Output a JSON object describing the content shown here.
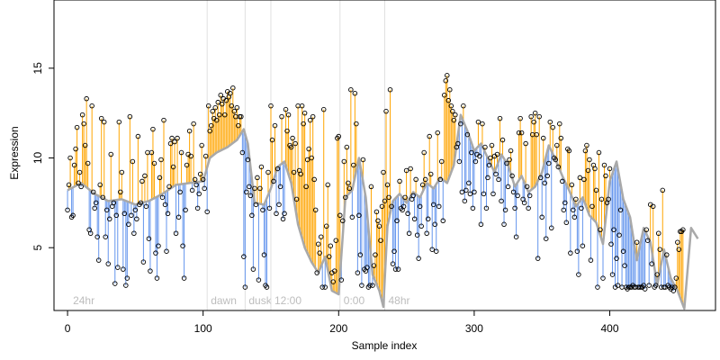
{
  "chart_data": {
    "type": "scatter",
    "xlabel": "Sample index",
    "ylabel": "Expression",
    "xlim": [
      -10,
      478
    ],
    "ylim": [
      1.5,
      18.8
    ],
    "x_ticks": [
      0,
      100,
      200,
      300,
      400
    ],
    "y_ticks": [
      5,
      10,
      15
    ],
    "grid": false,
    "colors": {
      "above": "#ffa500",
      "below": "#6495ed",
      "smooth": "#a9a9a9",
      "points": "#000000",
      "phase_lines": "#e0e0e0",
      "phase_labels": "#bdbdbd"
    },
    "phase_markers": [
      {
        "x": 103,
        "label": "dawn"
      },
      {
        "x": 131,
        "label": "dusk"
      },
      {
        "x": 150,
        "label": "12:00"
      },
      {
        "x": 201,
        "label": "0:00"
      },
      {
        "x": 234,
        "label": "48hr"
      }
    ],
    "corner_label": {
      "x": 2,
      "label": "24hr"
    },
    "smooth_series": {
      "name": "",
      "x": [
        0,
        10,
        20,
        30,
        40,
        50,
        60,
        70,
        80,
        90,
        100,
        105,
        110,
        118,
        125,
        130,
        133,
        138,
        145,
        150,
        155,
        160,
        165,
        170,
        175,
        180,
        185,
        190,
        195,
        200,
        205,
        210,
        215,
        220,
        225,
        230,
        233,
        236,
        240,
        245,
        250,
        255,
        260,
        265,
        270,
        275,
        280,
        285,
        290,
        295,
        300,
        305,
        310,
        315,
        320,
        325,
        330,
        335,
        340,
        345,
        350,
        355,
        360,
        365,
        370,
        375,
        380,
        385,
        390,
        395,
        400,
        405,
        410,
        415,
        420,
        425,
        430,
        435,
        440,
        445,
        450,
        455,
        460,
        465
      ],
      "y": [
        8.2,
        8.6,
        8.0,
        7.6,
        7.7,
        7.4,
        7.6,
        8.0,
        8.5,
        8.6,
        8.7,
        10.0,
        10.3,
        10.6,
        11.0,
        11.6,
        10.8,
        7.5,
        7.4,
        8.3,
        9.5,
        9.8,
        8.6,
        6.3,
        5.0,
        4.2,
        3.6,
        4.5,
        2.6,
        2.4,
        7.8,
        8.2,
        10.0,
        7.8,
        3.5,
        2.6,
        1.7,
        6.2,
        7.6,
        8.0,
        7.5,
        8.1,
        7.8,
        8.6,
        8.3,
        8.9,
        8.6,
        9.6,
        12.4,
        11.5,
        10.4,
        10.8,
        10.0,
        9.2,
        10.2,
        9.6,
        8.4,
        9.0,
        8.1,
        8.4,
        9.2,
        10.7,
        9.9,
        9.0,
        8.2,
        7.3,
        7.8,
        6.8,
        6.4,
        5.2,
        8.7,
        9.8,
        7.7,
        6.7,
        4.3,
        6.1,
        5.3,
        2.9,
        4.9,
        3.3,
        2.6,
        1.6,
        6.1,
        5.5
      ]
    },
    "points": {
      "name": "",
      "values": [
        7.1,
        8.5,
        10,
        6.7,
        6.8,
        9.6,
        10.5,
        11.7,
        8.6,
        9.2,
        8.4,
        12.4,
        11.9,
        10.7,
        13.3,
        9.7,
        6,
        5.8,
        12.9,
        8.1,
        7.2,
        7.5,
        5.6,
        4.3,
        8.5,
        12.2,
        7.8,
        12,
        5.6,
        7.1,
        4.1,
        6.6,
        10.2,
        7.3,
        7.5,
        3,
        6.8,
        3.9,
        12,
        8.1,
        9.2,
        3.8,
        6.9,
        2.9,
        3.3,
        6.3,
        12.3,
        6.8,
        9.8,
        5.8,
        7.1,
        6.6,
        11.2,
        7.4,
        7.5,
        8.7,
        4.2,
        9,
        7.3,
        10.3,
        5.5,
        3.7,
        10.3,
        11.6,
        9.7,
        4.7,
        3.3,
        5.1,
        8.9,
        9.9,
        7.8,
        12.1,
        7.4,
        4.8,
        6.9,
        8.4,
        10.8,
        11.1,
        9.5,
        10.9,
        5.8,
        11.1,
        6.7,
        8.1,
        10.3,
        5.1,
        3.3,
        7.1,
        9.6,
        10.2,
        11.5,
        10.1,
        8.2,
        11.9,
        8.8,
        8.5,
        7.2,
        8,
        9.1,
        10.7,
        8.8,
        8.3,
        10.1,
        7,
        12.9,
        11.5,
        11.8,
        12.6,
        12.2,
        12.8,
        12.1,
        13.1,
        12.4,
        13.5,
        13,
        13.3,
        12.4,
        13.2,
        13.7,
        13.4,
        13.6,
        12.9,
        13.9,
        12.6,
        12.3,
        12.8,
        11.8,
        12.3,
        12.3,
        10.3,
        4.5,
        2.8,
        8.1,
        9.9,
        8.4,
        7.9,
        6.8,
        3.8,
        8.3,
        7.4,
        8.9,
        3.2,
        8.3,
        9.5,
        7.1,
        4.6,
        2.9,
        2.8,
        9.2,
        7.2,
        12.9,
        11,
        8.7,
        11.8,
        6.9,
        9.4,
        7.4,
        8.4,
        12.3,
        6.6,
        6.9,
        12.7,
        11.5,
        12.4,
        10.7,
        10.6,
        11.1,
        9.2,
        10.8,
        7.7,
        12.9,
        9.3,
        9.1,
        12.9,
        11.9,
        12.5,
        8.4,
        9.9,
        10.5,
        12.1,
        10,
        12.3,
        8.8,
        7.1,
        3.6,
        5.2,
        4.7,
        5.6,
        2.8,
        12.7,
        2.8,
        6.2,
        8.5,
        4.5,
        5.1,
        3.6,
        3.1,
        3.7,
        5.4,
        11.1,
        11.2,
        6.8,
        3.2,
        6.5,
        9.8,
        7.8,
        10.6,
        8.6,
        8.3,
        13.8,
        6.7,
        9.6,
        13.6,
        11.9,
        3.6,
        6.8,
        4.6,
        2.9,
        9.9,
        3.8,
        3.7,
        3.9,
        2.8,
        2.9,
        8.4,
        2.9,
        4,
        4.6,
        7,
        6.5,
        6.2,
        5.4,
        7.3,
        9.2,
        7.6,
        12.6,
        8.5,
        7.8,
        13.8,
        7.3,
        4.1,
        4.8,
        3.8,
        6.5,
        3.8,
        8.7,
        7.2,
        7.1,
        7.3,
        7.8,
        9.3,
        6.9,
        5.8,
        9.4,
        7.7,
        7.9,
        6.6,
        8.8,
        5.7,
        4.4,
        7.3,
        6.2,
        8.5,
        10.3,
        8.8,
        5.8,
        6.6,
        11.2,
        9.1,
        4.9,
        7.4,
        6.3,
        4.8,
        11.4,
        7.3,
        8.8,
        9.8,
        6.5,
        13.5,
        14.3,
        14.6,
        13.2,
        13.8,
        12.9,
        12.6,
        12.1,
        12.4,
        10.6,
        10.8,
        9.8,
        11.9,
        8.1,
        12.9,
        7.6,
        8.2,
        11.3,
        8.6,
        8,
        10.3,
        7.2,
        8.1,
        9.8,
        10.2,
        12,
        10.1,
        6.3,
        11.9,
        8,
        10.6,
        7.2,
        8.9,
        9.6,
        10,
        10.7,
        8,
        10.1,
        9.1,
        10.2,
        8.8,
        12.2,
        7.6,
        11,
        6.3,
        7.1,
        9.7,
        8.4,
        9.9,
        10.4,
        9,
        8.1,
        7.2,
        5.6,
        7.9,
        11.4,
        12.2,
        11.4,
        7.7,
        7.5,
        10.8,
        8.4,
        7.2,
        7.9,
        12.3,
        11.3,
        12,
        12.5,
        11.3,
        4.4,
        12.3,
        8.9,
        6.7,
        11.1,
        8.6,
        5.5,
        9,
        9.7,
        12,
        6.1,
        11.7,
        10,
        9.9,
        10.7,
        9.5,
        11.9,
        11.1,
        8.7,
        7.1,
        7.5,
        6.4,
        10.5,
        10.4,
        4.7,
        8.5,
        7.1,
        6.7,
        7.7,
        4.8,
        3.5,
        8.9,
        7.2,
        5.1,
        8.8,
        10.4,
        10.7,
        9.3,
        9.9,
        4.3,
        7.3,
        9.6,
        9.4,
        8.2,
        2.8,
        10.3,
        6,
        7.7,
        3.3,
        9.6,
        9,
        7.5,
        7.7,
        9.4,
        5.2,
        3.5,
        6,
        2.8,
        4.4,
        2.9,
        5.7,
        7.1,
        2.8,
        4.8,
        4,
        2.8,
        2.7,
        2.8,
        2.8,
        2.8,
        2.9,
        2.8,
        2.8,
        5.3,
        2.8,
        2.8,
        2.8,
        2.8,
        2.9,
        2.7,
        6,
        5.4,
        2.9,
        7.4,
        4.1,
        7.3,
        2.8,
        2.9,
        3.5,
        5.8,
        4.9,
        2.8,
        8.2,
        2.8,
        2.8,
        4.6,
        2.9,
        2.8,
        2.7,
        2.8,
        2.6,
        2.8,
        3.3,
        5.3,
        4.9,
        5.9,
        5.9,
        6
      ]
    }
  }
}
